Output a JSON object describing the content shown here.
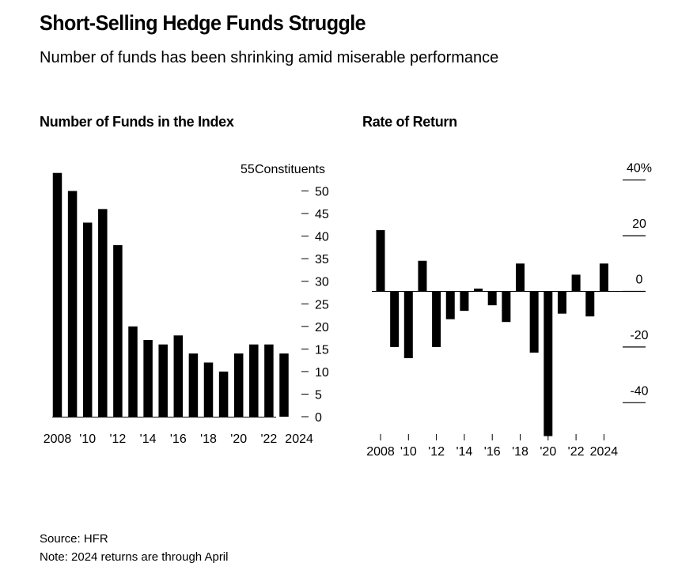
{
  "header": {
    "title": "Short-Selling Hedge Funds Struggle",
    "subtitle": "Number of funds has been shrinking amid miserable performance"
  },
  "footer": {
    "source": "Source: HFR",
    "note": "Note: 2024 returns are through April"
  },
  "colors": {
    "bars": "#000000",
    "axis": "#000000",
    "background": "#ffffff"
  },
  "chart_data": [
    {
      "type": "bar",
      "title": "Number of Funds in the Index",
      "unit_label": "Constituents",
      "x": [
        2008,
        2009,
        2010,
        2011,
        2012,
        2013,
        2014,
        2015,
        2016,
        2017,
        2018,
        2019,
        2020,
        2021,
        2022,
        2023,
        2024
      ],
      "values": [
        54,
        50,
        43,
        46,
        38,
        20,
        17,
        16,
        18,
        14,
        12,
        10,
        14,
        16,
        16,
        14,
        0
      ],
      "ylim": [
        0,
        55
      ],
      "yticks": [
        0,
        5,
        10,
        15,
        20,
        25,
        30,
        35,
        40,
        45,
        50,
        55
      ],
      "xtick_labels": [
        "2008",
        "'10",
        "'12",
        "'14",
        "'16",
        "'18",
        "'20",
        "'22",
        "2024"
      ],
      "y_axis_position": "right",
      "grid": false
    },
    {
      "type": "bar",
      "title": "Rate of Return",
      "x": [
        2008,
        2009,
        2010,
        2011,
        2012,
        2013,
        2014,
        2015,
        2016,
        2017,
        2018,
        2019,
        2020,
        2021,
        2022,
        2023,
        2024
      ],
      "values": [
        22,
        -20,
        -24,
        11,
        -20,
        -10,
        -7,
        1,
        -5,
        -11,
        10,
        -22,
        -52,
        -8,
        6,
        -9,
        10
      ],
      "ylim": [
        -50,
        40
      ],
      "yticks": [
        -40,
        -20,
        0,
        20,
        40
      ],
      "ytick_labels": [
        "-40",
        "-20",
        "0",
        "20",
        "40%"
      ],
      "xtick_labels": [
        "2008",
        "'10",
        "'12",
        "'14",
        "'16",
        "'18",
        "'20",
        "'22",
        "2024"
      ],
      "y_axis_position": "right",
      "grid": false
    }
  ]
}
